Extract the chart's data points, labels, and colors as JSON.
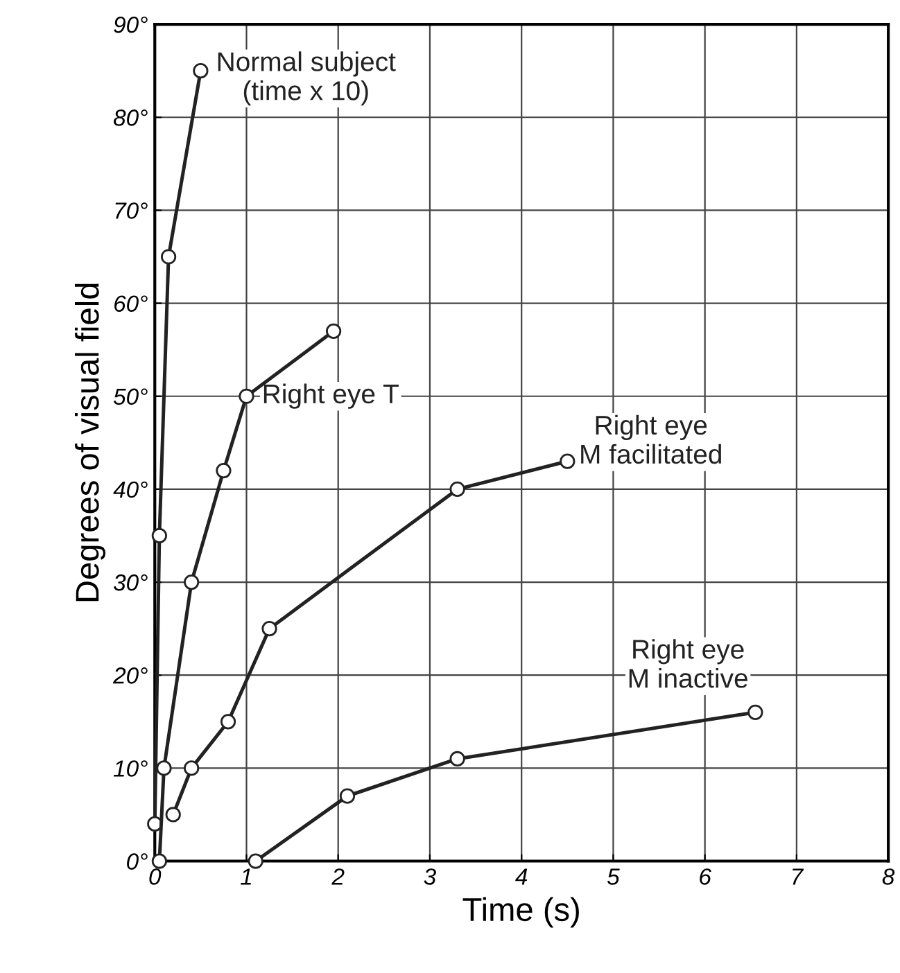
{
  "chart_data": {
    "type": "line",
    "xlabel": "Time (s)",
    "ylabel": "Degrees of visual field",
    "xlim": [
      0,
      8
    ],
    "ylim": [
      0,
      90
    ],
    "xticks": [
      0,
      1,
      2,
      3,
      4,
      5,
      6,
      7,
      8
    ],
    "yticks": [
      {
        "value": 0,
        "label": "0°"
      },
      {
        "value": 10,
        "label": "10°"
      },
      {
        "value": 20,
        "label": "20°"
      },
      {
        "value": 30,
        "label": "30°"
      },
      {
        "value": 40,
        "label": "40°"
      },
      {
        "value": 50,
        "label": "50°"
      },
      {
        "value": 60,
        "label": "60°"
      },
      {
        "value": 70,
        "label": "70°"
      },
      {
        "value": 80,
        "label": "80°"
      },
      {
        "value": 90,
        "label": "90°"
      }
    ],
    "grid": true,
    "marker": "circle",
    "legend": false,
    "series": [
      {
        "name": "Normal subject\n(time x 10)",
        "color": "#222222",
        "x": [
          0,
          0.05,
          0.15,
          0.5
        ],
        "values": [
          4,
          35,
          65,
          85
        ]
      },
      {
        "name": "Right eye T",
        "color": "#222222",
        "x": [
          0.05,
          0.1,
          0.4,
          0.75,
          1.0,
          1.95
        ],
        "values": [
          0,
          10,
          30,
          42,
          50,
          57
        ]
      },
      {
        "name": "Right eye\nM facilitated",
        "color": "#222222",
        "x": [
          0.2,
          0.4,
          0.8,
          1.25,
          3.3,
          4.5
        ],
        "values": [
          5,
          10,
          15,
          25,
          40,
          43
        ]
      },
      {
        "name": "Right eye\nM inactive",
        "color": "#222222",
        "x": [
          1.1,
          2.1,
          3.3,
          6.55
        ],
        "values": [
          0,
          7,
          11,
          16
        ]
      }
    ]
  }
}
